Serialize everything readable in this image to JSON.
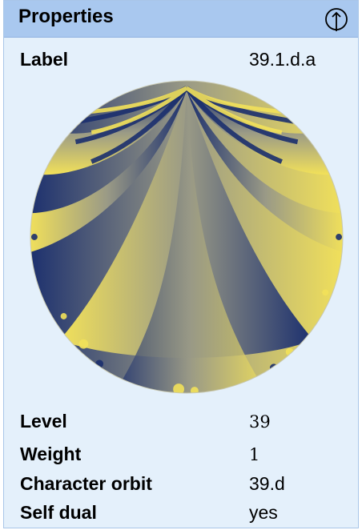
{
  "header": {
    "title": "Properties",
    "collapse_icon": "arrow-up-circle-icon"
  },
  "label": {
    "key": "Label",
    "value": "39.1.d.a"
  },
  "plot": {
    "icon": "modular-form-phase-plot",
    "colors": {
      "dark": "#1b2f6e",
      "light": "#f2e15a",
      "mid": "#9a9a86"
    }
  },
  "properties": [
    {
      "key": "Level",
      "value": "39"
    },
    {
      "key": "Weight",
      "value": "1"
    },
    {
      "key": "Character orbit",
      "value": "39.d"
    },
    {
      "key": "Self dual",
      "value": "yes"
    }
  ]
}
